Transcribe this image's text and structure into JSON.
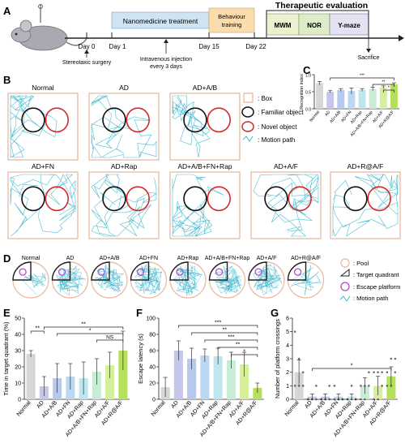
{
  "panel_labels": [
    "A",
    "B",
    "C",
    "D",
    "E",
    "F",
    "G"
  ],
  "timeline": {
    "days": [
      "Day 0",
      "Day 1",
      "Day 15",
      "Day 22"
    ],
    "phases": [
      "Nanomedicine treatment",
      "Behaviour training"
    ],
    "eval_title": "Therapeutic evaluation",
    "eval_tests": [
      "MWM",
      "NOR",
      "Y-maze"
    ],
    "notes": [
      "Stereotaxic surgery",
      "Intravenous injection every 3 days",
      "Sacrifice"
    ],
    "colors": {
      "treatment": "#cfe4f3",
      "training": "#fbdcae",
      "mwm": "#eaf1cf",
      "nor": "#ddecc9",
      "ymaze": "#e2e2f2"
    }
  },
  "nor": {
    "groups": [
      "Normal",
      "AD",
      "AD+A/B",
      "AD+FN",
      "AD+Rap",
      "AD+A/B+FN+Rap",
      "AD+A/F",
      "AD+R@A/F"
    ],
    "legend": [
      ": Box",
      ": Familiar object",
      ": Novel object",
      ": Motion path"
    ],
    "colors": {
      "box": "#e7b9a0",
      "familiar": "#111111",
      "novel": "#d42828",
      "path": "#3cb6cc"
    }
  },
  "mwm": {
    "groups": [
      "Normal",
      "AD",
      "AD+A/B",
      "AD+FN",
      "AD+Rap",
      "AD+A/B+FN+Rap",
      "AD+A/F",
      "AD+R@A/F"
    ],
    "legend": [
      ": Pool",
      ": Target quadrant",
      ": Escape platform",
      ": Motion path"
    ],
    "colors": {
      "pool": "#e7b9a0",
      "platform": "#b04cc8"
    }
  },
  "sig_labels": {
    "E": [
      "**",
      "**",
      "*",
      "NS"
    ],
    "F": [
      "***",
      "**",
      "***",
      "**",
      "*"
    ],
    "G": [
      "*"
    ]
  },
  "chart_data": [
    {
      "panel": "C",
      "type": "bar",
      "categories": [
        "Normal",
        "AD",
        "AD+A/B",
        "AD+FN",
        "AD+Rap",
        "AD+A/B+FN+Rap",
        "AD+A/F",
        "AD+R@A/F"
      ],
      "values": [
        0.75,
        0.5,
        0.55,
        0.52,
        0.55,
        0.58,
        0.63,
        0.72
      ],
      "errors": [
        0.05,
        0.03,
        0.04,
        0.09,
        0.04,
        0.05,
        0.04,
        0.04
      ],
      "ylabel": "Recognition index",
      "yticks": [
        "0.0",
        "0.5",
        "1.0"
      ],
      "ylim": [
        0,
        1.0
      ],
      "colors": [
        "#d6d6d6",
        "#c6c6ec",
        "#b7c9ec",
        "#bcd7f1",
        "#bfe5ef",
        "#c9ecd6",
        "#d6ef9c",
        "#b5e05c"
      ]
    },
    {
      "panel": "E",
      "type": "bar",
      "categories": [
        "Normal",
        "AD",
        "AD+A/B",
        "AD+FN",
        "AD+Rap",
        "AD+A/B+FN+Rap",
        "AD+A/F",
        "AD+R@A/F"
      ],
      "values": [
        28,
        8,
        13,
        14,
        13,
        17,
        21,
        30
      ],
      "errors": [
        2,
        6,
        9,
        8,
        10,
        8,
        8,
        12
      ],
      "ylabel": "Time in target quadrant (%)",
      "yticks": [
        "0",
        "10",
        "20",
        "30",
        "40",
        "50"
      ],
      "ylim": [
        0,
        50
      ],
      "colors": [
        "#d6d6d6",
        "#c6c6ec",
        "#b7c9ec",
        "#bcd7f1",
        "#bfe5ef",
        "#c9ecd6",
        "#d6ef9c",
        "#b5e05c"
      ]
    },
    {
      "panel": "F",
      "type": "bar",
      "categories": [
        "Normal",
        "AD",
        "AD+A/B",
        "AD+FN",
        "AD+Rap",
        "AD+A/B+FN+Rap",
        "AD+A/F",
        "AD+R@A/F"
      ],
      "values": [
        15,
        60,
        50,
        54,
        53,
        48,
        43,
        14
      ],
      "errors": [
        12,
        12,
        13,
        8,
        10,
        10,
        15,
        6
      ],
      "ylabel": "Escape latency (s)",
      "yticks": [
        "0",
        "20",
        "40",
        "60",
        "80",
        "100"
      ],
      "ylim": [
        0,
        100
      ],
      "colors": [
        "#d6d6d6",
        "#c6c6ec",
        "#b7c9ec",
        "#bcd7f1",
        "#bfe5ef",
        "#c9ecd6",
        "#d6ef9c",
        "#b5e05c"
      ]
    },
    {
      "panel": "G",
      "type": "bar",
      "categories": [
        "Normal",
        "AD",
        "AD+A/B",
        "AD+FN",
        "AD+Rap",
        "AD+A/B+FN+Rap",
        "AD+A/F",
        "AD+R@A/F"
      ],
      "values": [
        2.0,
        0.2,
        0.2,
        0.2,
        0.2,
        1.0,
        1.0,
        1.7
      ],
      "errors": [
        0.9,
        0.2,
        0.2,
        0.2,
        0.2,
        0.6,
        0.7,
        0.7
      ],
      "ylabel": "Number of platform crossings",
      "yticks": [
        "0",
        "1",
        "2",
        "3",
        "4",
        "5",
        "6"
      ],
      "ylim": [
        0,
        6
      ],
      "colors": [
        "#d6d6d6",
        "#c6c6ec",
        "#b7c9ec",
        "#bcd7f1",
        "#bfe5ef",
        "#c9ecd6",
        "#d6ef9c",
        "#b5e05c"
      ],
      "points": [
        [
          5,
          3,
          2,
          1,
          1,
          1
        ],
        [
          0,
          0,
          1,
          0,
          0,
          0
        ],
        [
          0,
          0,
          1,
          0,
          0,
          0
        ],
        [
          0,
          0,
          0,
          1,
          0,
          0
        ],
        [
          0,
          0,
          0,
          0,
          1,
          0
        ],
        [
          0,
          0,
          1,
          1,
          1,
          2
        ],
        [
          0,
          0,
          1,
          2,
          2,
          2
        ],
        [
          1,
          1,
          2,
          2,
          3,
          3
        ]
      ]
    }
  ]
}
